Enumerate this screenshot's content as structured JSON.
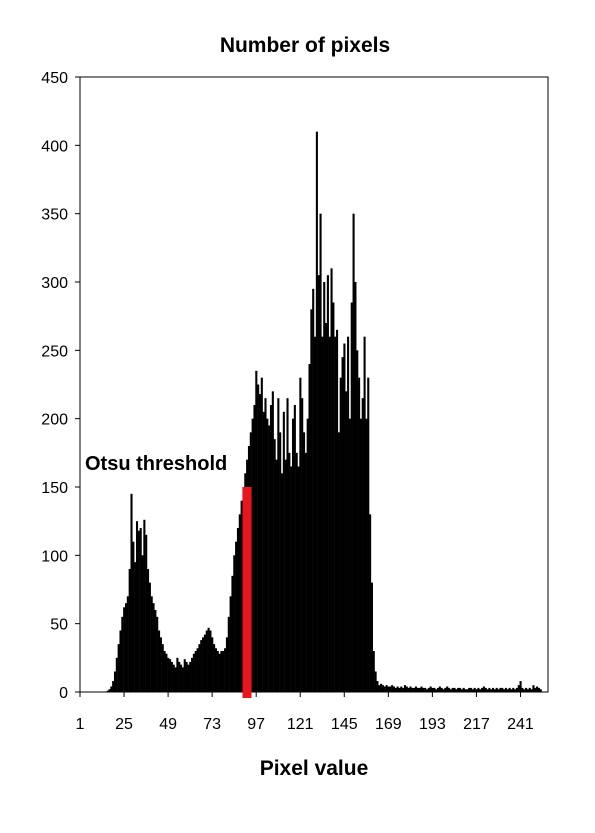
{
  "chart_data": {
    "type": "bar",
    "title": "Number of pixels",
    "xlabel": "Pixel value",
    "ylabel": "",
    "ylim": [
      0,
      450
    ],
    "xlim": [
      1,
      256
    ],
    "yticks": [
      "0",
      "50",
      "100",
      "150",
      "200",
      "250",
      "300",
      "350",
      "400",
      "450"
    ],
    "xticks": [
      "1",
      "25",
      "49",
      "73",
      "97",
      "121",
      "145",
      "169",
      "193",
      "217",
      "241"
    ],
    "grid": false,
    "legend": "none",
    "bar_color": "#000000",
    "threshold": {
      "label": "Otsu threshold",
      "x": 92,
      "height": 150,
      "color": "#e8141e"
    },
    "x": [
      1,
      2,
      3,
      4,
      5,
      6,
      7,
      8,
      9,
      10,
      11,
      12,
      13,
      14,
      15,
      16,
      17,
      18,
      19,
      20,
      21,
      22,
      23,
      24,
      25,
      26,
      27,
      28,
      29,
      30,
      31,
      32,
      33,
      34,
      35,
      36,
      37,
      38,
      39,
      40,
      41,
      42,
      43,
      44,
      45,
      46,
      47,
      48,
      49,
      50,
      51,
      52,
      53,
      54,
      55,
      56,
      57,
      58,
      59,
      60,
      61,
      62,
      63,
      64,
      65,
      66,
      67,
      68,
      69,
      70,
      71,
      72,
      73,
      74,
      75,
      76,
      77,
      78,
      79,
      80,
      81,
      82,
      83,
      84,
      85,
      86,
      87,
      88,
      89,
      90,
      91,
      92,
      93,
      94,
      95,
      96,
      97,
      98,
      99,
      100,
      101,
      102,
      103,
      104,
      105,
      106,
      107,
      108,
      109,
      110,
      111,
      112,
      113,
      114,
      115,
      116,
      117,
      118,
      119,
      120,
      121,
      122,
      123,
      124,
      125,
      126,
      127,
      128,
      129,
      130,
      131,
      132,
      133,
      134,
      135,
      136,
      137,
      138,
      139,
      140,
      141,
      142,
      143,
      144,
      145,
      146,
      147,
      148,
      149,
      150,
      151,
      152,
      153,
      154,
      155,
      156,
      157,
      158,
      159,
      160,
      161,
      162,
      163,
      164,
      165,
      166,
      167,
      168,
      169,
      170,
      171,
      172,
      173,
      174,
      175,
      176,
      177,
      178,
      179,
      180,
      181,
      182,
      183,
      184,
      185,
      186,
      187,
      188,
      189,
      190,
      191,
      192,
      193,
      194,
      195,
      196,
      197,
      198,
      199,
      200,
      201,
      202,
      203,
      204,
      205,
      206,
      207,
      208,
      209,
      210,
      211,
      212,
      213,
      214,
      215,
      216,
      217,
      218,
      219,
      220,
      221,
      222,
      223,
      224,
      225,
      226,
      227,
      228,
      229,
      230,
      231,
      232,
      233,
      234,
      235,
      236,
      237,
      238,
      239,
      240,
      241,
      242,
      243,
      244,
      245,
      246,
      247,
      248,
      249,
      250,
      251,
      252,
      253,
      254,
      255,
      256
    ],
    "values": [
      0,
      0,
      0,
      0,
      0,
      0,
      0,
      0,
      0,
      0,
      0,
      0,
      0,
      0,
      0,
      1,
      2,
      4,
      8,
      15,
      25,
      35,
      45,
      55,
      62,
      65,
      70,
      90,
      145,
      110,
      95,
      125,
      118,
      120,
      100,
      126,
      115,
      90,
      80,
      70,
      65,
      60,
      55,
      45,
      40,
      35,
      30,
      28,
      25,
      24,
      22,
      20,
      18,
      25,
      22,
      20,
      18,
      24,
      22,
      20,
      22,
      25,
      28,
      30,
      32,
      35,
      38,
      40,
      42,
      45,
      47,
      45,
      40,
      35,
      32,
      30,
      28,
      30,
      30,
      32,
      40,
      55,
      70,
      85,
      100,
      110,
      120,
      130,
      140,
      150,
      160,
      170,
      180,
      190,
      200,
      210,
      235,
      225,
      218,
      230,
      205,
      215,
      200,
      195,
      210,
      220,
      185,
      170,
      215,
      190,
      160,
      205,
      170,
      215,
      175,
      165,
      200,
      210,
      175,
      165,
      230,
      215,
      190,
      175,
      200,
      240,
      280,
      295,
      260,
      410,
      305,
      350,
      260,
      300,
      270,
      305,
      260,
      310,
      285,
      260,
      265,
      190,
      230,
      245,
      255,
      220,
      260,
      200,
      285,
      350,
      300,
      250,
      230,
      200,
      215,
      260,
      200,
      230,
      130,
      80,
      30,
      15,
      8,
      5,
      6,
      5,
      4,
      5,
      4,
      4,
      5,
      4,
      3,
      4,
      3,
      4,
      3,
      5,
      4,
      3,
      4,
      3,
      3,
      4,
      3,
      3,
      4,
      3,
      3,
      2,
      3,
      4,
      3,
      3,
      2,
      3,
      4,
      3,
      2,
      3,
      4,
      3,
      2,
      3,
      3,
      2,
      3,
      3,
      2,
      3,
      2,
      2,
      3,
      3,
      2,
      3,
      2,
      3,
      2,
      3,
      4,
      3,
      2,
      3,
      2,
      3,
      2,
      3,
      2,
      3,
      3,
      2,
      3,
      2,
      3,
      2,
      3,
      2,
      3,
      5,
      8,
      3,
      2,
      3,
      2,
      3,
      2,
      5,
      3,
      4,
      3,
      2,
      0,
      0,
      0,
      0
    ]
  }
}
